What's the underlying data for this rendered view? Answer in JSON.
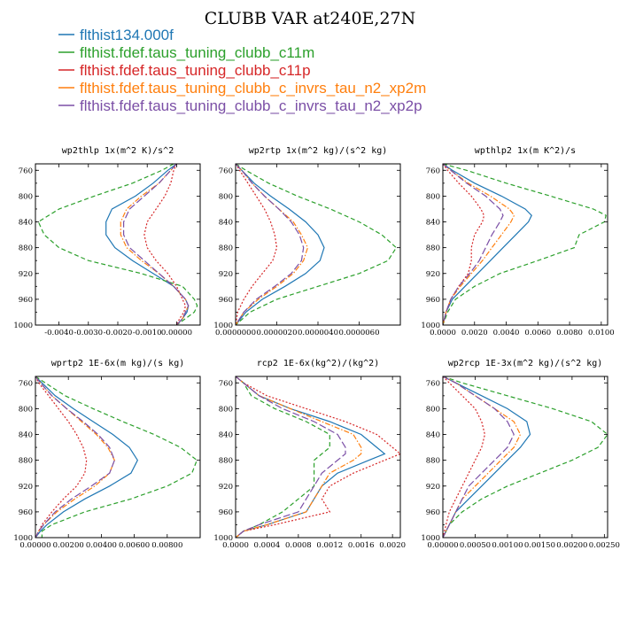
{
  "title": "CLUBB VAR at240E,27N",
  "legend": [
    {
      "label": "flthist134.000f",
      "color": "#1f77b4",
      "dash": "solid"
    },
    {
      "label": "flthist.fdef.taus_tuning_clubb_c11m",
      "color": "#2ca02c",
      "dash": "dash"
    },
    {
      "label": "flthist.fdef.taus_tuning_clubb_c11p",
      "color": "#d62728",
      "dash": "dot"
    },
    {
      "label": "flthist.fdef.taus_tuning_clubb_c_invrs_tau_n2_xp2m",
      "color": "#ff7f0e",
      "dash": "dashdot"
    },
    {
      "label": "flthist.fdef.taus_tuning_clubb_c_invrs_tau_n2_xp2p",
      "color": "#7b4fa6",
      "dash": "longdash"
    }
  ],
  "chart_data": [
    {
      "type": "line",
      "title": "wp2thlp  1x(m^2 K)/s^2",
      "xlim": [
        -0.0048,
        0.0008
      ],
      "ylim": [
        1000,
        750
      ],
      "xticks": [
        -0.004,
        -0.003,
        -0.002,
        -0.001,
        0.0
      ],
      "xtick_labels": [
        "-0.0040",
        "-0.0030",
        "-0.0020",
        "-0.0010",
        "0.00000"
      ],
      "yticks": [
        760,
        800,
        840,
        880,
        920,
        960,
        1000
      ],
      "ytick_labels": [
        "760",
        "800",
        "840",
        "880",
        "920",
        "960",
        "1000"
      ],
      "y": [
        750,
        760,
        780,
        800,
        820,
        840,
        860,
        880,
        900,
        920,
        940,
        960,
        970,
        980,
        990,
        1000
      ],
      "series": [
        {
          "values": [
            0.0,
            -0.0003,
            -0.0008,
            -0.0014,
            -0.0022,
            -0.0024,
            -0.0024,
            -0.0021,
            -0.0015,
            -0.0008,
            -0.0001,
            0.0003,
            0.0004,
            0.00035,
            0.0002,
            0.0
          ]
        },
        {
          "values": [
            -0.0001,
            -0.0005,
            -0.0015,
            -0.0028,
            -0.004,
            -0.0047,
            -0.0045,
            -0.004,
            -0.003,
            -0.0012,
            0.0002,
            0.0006,
            0.0007,
            0.0006,
            0.0003,
            0.0
          ]
        },
        {
          "values": [
            0.0,
            -0.0001,
            -0.0002,
            -0.0004,
            -0.0007,
            -0.001,
            -0.0011,
            -0.001,
            -0.0007,
            -0.0003,
            0.0,
            0.0002,
            0.0003,
            0.00025,
            0.0001,
            0.0
          ]
        },
        {
          "values": [
            0.0,
            -0.0002,
            -0.0006,
            -0.0012,
            -0.0017,
            -0.0019,
            -0.0019,
            -0.0017,
            -0.0012,
            -0.0006,
            -0.0001,
            0.0003,
            0.0004,
            0.0003,
            0.0002,
            0.0
          ]
        },
        {
          "values": [
            0.0,
            -0.0002,
            -0.0006,
            -0.0011,
            -0.0016,
            -0.0018,
            -0.0018,
            -0.0016,
            -0.0011,
            -0.0006,
            -0.0001,
            0.0003,
            0.0004,
            0.0003,
            0.0002,
            0.0
          ]
        }
      ]
    },
    {
      "type": "line",
      "title": "wp2rtp  1x(m^2 kg)/(s^2 kg)",
      "xlim": [
        0.0,
        8e-06
      ],
      "ylim": [
        1000,
        750
      ],
      "xticks": [
        0.0,
        2e-06,
        4e-06,
        6e-06
      ],
      "xtick_labels": [
        "0.0000000",
        "0.0000020",
        "0.0000040",
        "0.0000060"
      ],
      "yticks": [
        760,
        800,
        840,
        880,
        920,
        960,
        1000
      ],
      "ytick_labels": [
        "760",
        "800",
        "840",
        "880",
        "920",
        "960",
        "1000"
      ],
      "y": [
        750,
        760,
        780,
        800,
        820,
        840,
        860,
        880,
        900,
        920,
        940,
        960,
        980,
        1000
      ],
      "series": [
        {
          "values": [
            0.0,
            3e-07,
            9e-07,
            1.7e-06,
            2.6e-06,
            3.4e-06,
            4e-06,
            4.3e-06,
            4.1e-06,
            3.4e-06,
            2.4e-06,
            1.3e-06,
            5e-07,
            0.0
          ],
          "dash": "solid"
        },
        {
          "values": [
            0.0,
            5e-07,
            1.6e-06,
            3e-06,
            4.6e-06,
            6e-06,
            7.1e-06,
            7.8e-06,
            7.4e-06,
            6e-06,
            4e-06,
            2e-06,
            7e-07,
            0.0
          ]
        },
        {
          "values": [
            0.0,
            2e-07,
            6e-07,
            1e-06,
            1.4e-06,
            1.7e-06,
            1.9e-06,
            2e-06,
            1.8e-06,
            1.3e-06,
            8e-07,
            4e-07,
            1e-07,
            0.0
          ]
        },
        {
          "values": [
            0.0,
            3e-07,
            8e-07,
            1.4e-06,
            2.1e-06,
            2.8e-06,
            3.2e-06,
            3.5e-06,
            3.3e-06,
            2.8e-06,
            2e-06,
            1.1e-06,
            4e-07,
            0.0
          ]
        },
        {
          "values": [
            0.0,
            3e-07,
            8e-07,
            1.4e-06,
            2.1e-06,
            2.7e-06,
            3.1e-06,
            3.3e-06,
            3.2e-06,
            2.7e-06,
            1.9e-06,
            1e-06,
            4e-07,
            0.0
          ]
        }
      ]
    },
    {
      "type": "line",
      "title": "wpthlp2  1x(m K^2)/s",
      "xlim": [
        0.0,
        0.0104
      ],
      "ylim": [
        1000,
        750
      ],
      "xticks": [
        0.0,
        0.002,
        0.004,
        0.006,
        0.008,
        0.01
      ],
      "xtick_labels": [
        "0.0000",
        "0.0020",
        "0.0040",
        "0.0060",
        "0.0080",
        "0.0100"
      ],
      "yticks": [
        760,
        800,
        840,
        880,
        920,
        960,
        1000
      ],
      "ytick_labels": [
        "760",
        "800",
        "840",
        "880",
        "920",
        "960",
        "1000"
      ],
      "y": [
        750,
        760,
        780,
        800,
        820,
        830,
        840,
        860,
        880,
        900,
        920,
        940,
        960,
        980,
        1000
      ],
      "series": [
        {
          "values": [
            0.0,
            0.0006,
            0.002,
            0.0037,
            0.0052,
            0.0056,
            0.0054,
            0.0046,
            0.0038,
            0.003,
            0.0022,
            0.0014,
            0.0006,
            0.0002,
            0.0
          ]
        },
        {
          "values": [
            0.0,
            0.0015,
            0.004,
            0.0068,
            0.0095,
            0.0103,
            0.0102,
            0.0086,
            0.0083,
            0.006,
            0.0036,
            0.002,
            0.0008,
            0.0003,
            0.0
          ]
        },
        {
          "values": [
            0.0,
            0.0003,
            0.001,
            0.0018,
            0.0024,
            0.0026,
            0.0025,
            0.002,
            0.0018,
            0.0018,
            0.0016,
            0.001,
            0.0005,
            0.0002,
            0.0
          ]
        },
        {
          "values": [
            0.0,
            0.0005,
            0.0016,
            0.003,
            0.0042,
            0.0045,
            0.0043,
            0.0037,
            0.0031,
            0.0025,
            0.0018,
            0.0011,
            0.0005,
            0.0002,
            0.0
          ]
        },
        {
          "values": [
            0.0,
            0.0005,
            0.0015,
            0.0027,
            0.0036,
            0.0038,
            0.0036,
            0.0031,
            0.0027,
            0.0023,
            0.0017,
            0.001,
            0.0005,
            0.0002,
            0.0
          ]
        }
      ]
    },
    {
      "type": "line",
      "title": "wprtp2  1E-6x(m kg)/(s kg)",
      "xlim": [
        0.0,
        0.01
      ],
      "ylim": [
        1000,
        750
      ],
      "xticks": [
        0.0,
        0.002,
        0.004,
        0.006,
        0.008
      ],
      "xtick_labels": [
        "0.00000",
        "0.00200",
        "0.00400",
        "0.00600",
        "0.00800"
      ],
      "yticks": [
        760,
        800,
        840,
        880,
        920,
        960,
        1000
      ],
      "ytick_labels": [
        "760",
        "800",
        "840",
        "880",
        "920",
        "960",
        "1000"
      ],
      "y": [
        750,
        760,
        780,
        800,
        820,
        840,
        860,
        880,
        900,
        920,
        940,
        960,
        980,
        990,
        1000
      ],
      "series": [
        {
          "values": [
            0.0,
            0.0004,
            0.0012,
            0.0023,
            0.0035,
            0.0047,
            0.0057,
            0.0062,
            0.0058,
            0.0045,
            0.003,
            0.0017,
            0.0007,
            0.0003,
            0.0
          ]
        },
        {
          "values": [
            0.0,
            0.0006,
            0.0018,
            0.0035,
            0.0053,
            0.0072,
            0.0088,
            0.0098,
            0.0095,
            0.008,
            0.0058,
            0.003,
            0.001,
            0.0004,
            0.0004
          ]
        },
        {
          "values": [
            0.0,
            0.0002,
            0.0008,
            0.0014,
            0.002,
            0.0025,
            0.0029,
            0.0031,
            0.003,
            0.0025,
            0.0017,
            0.001,
            0.0004,
            0.0002,
            0.0
          ]
        },
        {
          "values": [
            0.0,
            0.0003,
            0.001,
            0.0019,
            0.0028,
            0.0037,
            0.0044,
            0.0048,
            0.0045,
            0.0036,
            0.0024,
            0.0013,
            0.0005,
            0.0002,
            0.0
          ]
        },
        {
          "values": [
            0.0,
            0.0003,
            0.001,
            0.0019,
            0.0029,
            0.0038,
            0.0045,
            0.0048,
            0.0045,
            0.0034,
            0.0022,
            0.0012,
            0.0005,
            0.0002,
            0.0
          ]
        }
      ]
    },
    {
      "type": "line",
      "title": "rcp2  1E-6x(kg^2)/(kg^2)",
      "xlim": [
        0.0,
        0.0021
      ],
      "ylim": [
        1000,
        750
      ],
      "xticks": [
        0.0,
        0.0004,
        0.0008,
        0.0012,
        0.0016,
        0.002
      ],
      "xtick_labels": [
        "0.0000",
        "0.0004",
        "0.0008",
        "0.0012",
        "0.0016",
        "0.0020"
      ],
      "yticks": [
        760,
        800,
        840,
        880,
        920,
        960,
        1000
      ],
      "ytick_labels": [
        "760",
        "800",
        "840",
        "880",
        "920",
        "960",
        "1000"
      ],
      "y": [
        750,
        760,
        780,
        800,
        820,
        840,
        860,
        870,
        880,
        900,
        920,
        940,
        960,
        980,
        990,
        1000
      ],
      "series": [
        {
          "values": [
            0.0,
            0.0001,
            0.0003,
            0.0007,
            0.0012,
            0.0016,
            0.0018,
            0.0019,
            0.0017,
            0.0013,
            0.0011,
            0.001,
            0.0009,
            0.0004,
            0.0001,
            0.0
          ]
        },
        {
          "values": [
            0.0,
            0.0001,
            0.0002,
            0.0005,
            0.0009,
            0.0012,
            0.0012,
            0.0011,
            0.001,
            0.001,
            0.001,
            0.0008,
            0.0006,
            0.0003,
            0.0001,
            0.0
          ]
        },
        {
          "values": [
            0.0,
            0.0001,
            0.0004,
            0.0009,
            0.0014,
            0.0018,
            0.002,
            0.0021,
            0.0019,
            0.0015,
            0.0012,
            0.0011,
            0.0012,
            0.0005,
            0.0001,
            0.0
          ]
        },
        {
          "values": [
            0.0,
            0.0001,
            0.0003,
            0.0007,
            0.0011,
            0.0015,
            0.0016,
            0.0016,
            0.0015,
            0.0012,
            0.0011,
            0.001,
            0.0009,
            0.0004,
            0.0001,
            0.0
          ]
        },
        {
          "values": [
            0.0,
            0.0001,
            0.0003,
            0.0006,
            0.001,
            0.0013,
            0.0014,
            0.0014,
            0.0013,
            0.0011,
            0.001,
            0.0009,
            0.0008,
            0.0003,
            0.0001,
            0.0
          ]
        }
      ]
    },
    {
      "type": "line",
      "title": "wp2rcp  1E-3x(m^2 kg)/(s^2 kg)",
      "xlim": [
        0.0,
        0.00255
      ],
      "ylim": [
        1000,
        750
      ],
      "xticks": [
        0.0,
        0.0005,
        0.001,
        0.0015,
        0.002,
        0.0025
      ],
      "xtick_labels": [
        "0.00000",
        "0.00050",
        "0.00100",
        "0.00150",
        "0.00200",
        "0.00250"
      ],
      "yticks": [
        760,
        800,
        840,
        880,
        920,
        960,
        1000
      ],
      "ytick_labels": [
        "760",
        "800",
        "840",
        "880",
        "920",
        "960",
        "1000"
      ],
      "y": [
        750,
        760,
        780,
        800,
        820,
        840,
        860,
        880,
        900,
        920,
        940,
        960,
        980,
        1000
      ],
      "series": [
        {
          "values": [
            0.0,
            0.0002,
            0.0006,
            0.001,
            0.0013,
            0.00135,
            0.0012,
            0.001,
            0.0008,
            0.0006,
            0.0004,
            0.0002,
            0.0001,
            0.0
          ]
        },
        {
          "values": [
            0.0,
            0.0003,
            0.001,
            0.0017,
            0.0023,
            0.00255,
            0.0024,
            0.002,
            0.0015,
            0.001,
            0.0006,
            0.0003,
            0.0001,
            0.0
          ]
        },
        {
          "values": [
            0.0,
            0.0001,
            0.0003,
            0.0005,
            0.0006,
            0.00065,
            0.0006,
            0.0005,
            0.0004,
            0.0003,
            0.0002,
            0.0001,
            5e-05,
            0.0
          ]
        },
        {
          "values": [
            0.0,
            0.0002,
            0.0005,
            0.0008,
            0.0011,
            0.0012,
            0.0011,
            0.0009,
            0.0007,
            0.0005,
            0.0003,
            0.0002,
            0.0001,
            0.0
          ]
        },
        {
          "values": [
            0.0,
            0.0002,
            0.0005,
            0.0008,
            0.001,
            0.0011,
            0.001,
            0.0008,
            0.0006,
            0.0004,
            0.0003,
            0.0002,
            0.0001,
            0.0
          ]
        }
      ]
    }
  ]
}
